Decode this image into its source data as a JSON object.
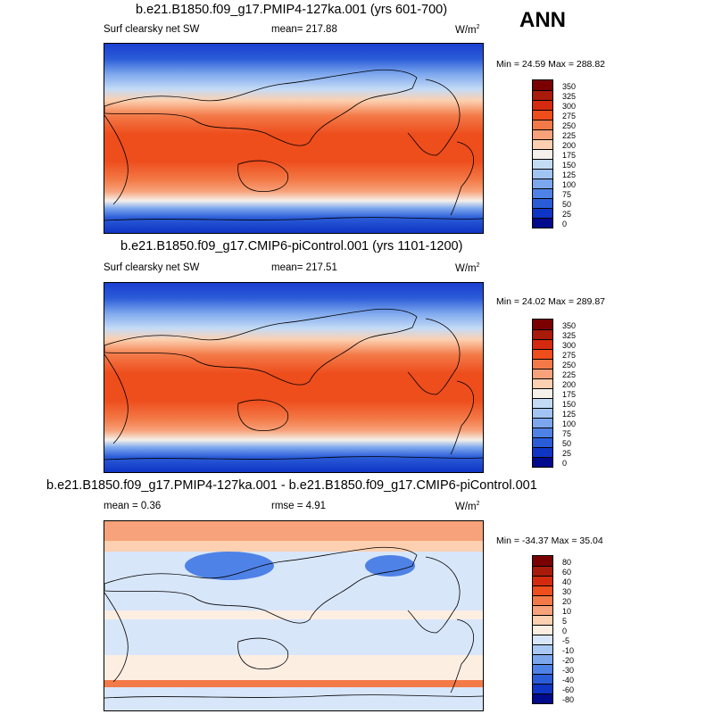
{
  "season": "ANN",
  "units_base": "W/m",
  "units_exp": "2",
  "panels": [
    {
      "title": "b.e21.B1850.f09_g17.PMIP4-127ka.001 (yrs 601-700)",
      "left": "Surf clearsky net SW",
      "mid": "mean= 217.88",
      "minmax": "Min =  24.59 Max = 288.82"
    },
    {
      "title": "b.e21.B1850.f09_g17.CMIP6-piControl.001 (yrs 1101-1200)",
      "left": "Surf clearsky net SW",
      "mid": "mean= 217.51",
      "minmax": "Min =  24.02 Max = 289.87"
    },
    {
      "title": "b.e21.B1850.f09_g17.PMIP4-127ka.001 - b.e21.B1850.f09_g17.CMIP6-piControl.001",
      "left": "mean =   0.36",
      "mid": "rmse =   4.91",
      "minmax": "Min = -34.37 Max =  35.04"
    }
  ],
  "chart_data": [
    {
      "type": "heatmap",
      "title": "b.e21.B1850.f09_g17.PMIP4-127ka.001 (yrs 601-700)",
      "colorbar_levels": [
        "350",
        "325",
        "300",
        "275",
        "250",
        "225",
        "200",
        "175",
        "150",
        "125",
        "100",
        "75",
        "50",
        "25",
        "0"
      ],
      "colorbar_colors": [
        "#7a0000",
        "#a81a0a",
        "#d42a10",
        "#ee4d1c",
        "#f37a48",
        "#f7a27a",
        "#fcd0b0",
        "#f5f0ea",
        "#c4dbf6",
        "#a2c4f2",
        "#7da7ed",
        "#4f82e6",
        "#2b5cd8",
        "#0f35c4",
        "#000a8c"
      ]
    },
    {
      "type": "heatmap",
      "title": "b.e21.B1850.f09_g17.CMIP6-piControl.001 (yrs 1101-1200)",
      "colorbar_levels": [
        "350",
        "325",
        "300",
        "275",
        "250",
        "225",
        "200",
        "175",
        "150",
        "125",
        "100",
        "75",
        "50",
        "25",
        "0"
      ],
      "colorbar_colors": [
        "#7a0000",
        "#a81a0a",
        "#d42a10",
        "#ee4d1c",
        "#f37a48",
        "#f7a27a",
        "#fcd0b0",
        "#f5f0ea",
        "#c4dbf6",
        "#a2c4f2",
        "#7da7ed",
        "#4f82e6",
        "#2b5cd8",
        "#0f35c4",
        "#000a8c"
      ]
    },
    {
      "type": "heatmap",
      "title": "b.e21.B1850.f09_g17.PMIP4-127ka.001 - b.e21.B1850.f09_g17.CMIP6-piControl.001",
      "colorbar_levels": [
        "80",
        "60",
        "40",
        "30",
        "20",
        "10",
        "5",
        "0",
        "-5",
        "-10",
        "-20",
        "-30",
        "-40",
        "-60",
        "-80"
      ],
      "colorbar_colors": [
        "#7a0000",
        "#a81a0a",
        "#d42a10",
        "#ee4d1c",
        "#f37a48",
        "#f7a27a",
        "#fcd0b0",
        "#fdeee2",
        "#d8e6fa",
        "#a9c8f3",
        "#7da7ed",
        "#4f82e6",
        "#2b5cd8",
        "#0f35c4",
        "#000a8c"
      ]
    }
  ]
}
